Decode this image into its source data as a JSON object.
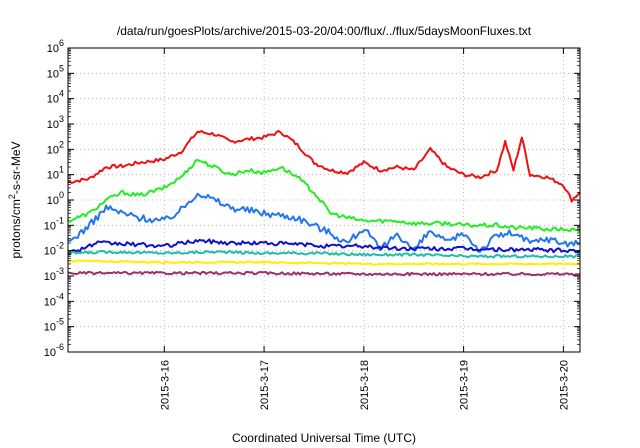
{
  "chart_data": {
    "type": "line",
    "title": "/data/run/goesPlots/archive/2015-03-20/04:00/flux/../flux/5daysMoonFluxes.txt",
    "xlabel": "Coordinated Universal Time (UTC)",
    "ylabel": {
      "base": "protons/cm",
      "sup": "2",
      "rest": "-s-sr-MeV"
    },
    "y_scale": "log",
    "ylim": [
      1e-06,
      1000000.0
    ],
    "xlim": [
      "2015-03-15 00:50",
      "2015-03-20 04:00"
    ],
    "grid": true,
    "legend": "none",
    "y_ticks": [
      {
        "value": 1e-06,
        "base": "10",
        "exp": "-6"
      },
      {
        "value": 1e-05,
        "base": "10",
        "exp": "-5"
      },
      {
        "value": 0.0001,
        "base": "10",
        "exp": "-4"
      },
      {
        "value": 0.001,
        "base": "10",
        "exp": "-3"
      },
      {
        "value": 0.01,
        "base": "10",
        "exp": "-2"
      },
      {
        "value": 0.1,
        "base": "10",
        "exp": "-1"
      },
      {
        "value": 1,
        "base": "10",
        "exp": "0"
      },
      {
        "value": 10,
        "base": "10",
        "exp": "1"
      },
      {
        "value": 100,
        "base": "10",
        "exp": "2"
      },
      {
        "value": 1000,
        "base": "10",
        "exp": "3"
      },
      {
        "value": 10000,
        "base": "10",
        "exp": "4"
      },
      {
        "value": 100000,
        "base": "10",
        "exp": "5"
      },
      {
        "value": 1000000,
        "base": "10",
        "exp": "6"
      }
    ],
    "x_ticks": [
      "2015-3-16",
      "2015-3-17",
      "2015-3-18",
      "2015-3-19",
      "2015-3-20"
    ],
    "series": [
      {
        "color": "#ee1111",
        "x": [
          "2015-03-15 00:50",
          "2015-03-15 06:00",
          "2015-03-15 10:00",
          "2015-03-15 14:00",
          "2015-03-15 18:00",
          "2015-03-16 00:00",
          "2015-03-16 04:00",
          "2015-03-16 08:00",
          "2015-03-16 12:00",
          "2015-03-16 16:00",
          "2015-03-16 20:00",
          "2015-03-17 00:00",
          "2015-03-17 04:00",
          "2015-03-17 08:00",
          "2015-03-17 12:00",
          "2015-03-17 16:00",
          "2015-03-17 20:00",
          "2015-03-18 00:00",
          "2015-03-18 04:00",
          "2015-03-18 08:00",
          "2015-03-18 12:00",
          "2015-03-18 16:00",
          "2015-03-18 20:00",
          "2015-03-19 00:00",
          "2015-03-19 04:00",
          "2015-03-19 08:00",
          "2015-03-19 10:00",
          "2015-03-19 12:00",
          "2015-03-19 14:00",
          "2015-03-19 16:00",
          "2015-03-19 20:00",
          "2015-03-20 00:00",
          "2015-03-20 02:00",
          "2015-03-20 04:00"
        ],
        "values": [
          5,
          7,
          20,
          22,
          30,
          40,
          80,
          500,
          400,
          200,
          250,
          300,
          500,
          150,
          30,
          15,
          12,
          30,
          15,
          20,
          15,
          100,
          20,
          10,
          8,
          15,
          200,
          15,
          300,
          10,
          8,
          4,
          1,
          2
        ]
      },
      {
        "color": "#22ee22",
        "x": [
          "2015-03-15 00:50",
          "2015-03-15 06:00",
          "2015-03-15 10:00",
          "2015-03-15 14:00",
          "2015-03-15 18:00",
          "2015-03-16 00:00",
          "2015-03-16 04:00",
          "2015-03-16 08:00",
          "2015-03-16 12:00",
          "2015-03-16 16:00",
          "2015-03-16 20:00",
          "2015-03-17 00:00",
          "2015-03-17 04:00",
          "2015-03-17 08:00",
          "2015-03-17 12:00",
          "2015-03-17 16:00",
          "2015-03-17 20:00",
          "2015-03-18 00:00",
          "2015-03-18 04:00",
          "2015-03-18 08:00",
          "2015-03-18 12:00",
          "2015-03-18 16:00",
          "2015-03-18 20:00",
          "2015-03-19 00:00",
          "2015-03-19 04:00",
          "2015-03-19 08:00",
          "2015-03-19 12:00",
          "2015-03-19 16:00",
          "2015-03-19 20:00",
          "2015-03-20 00:00",
          "2015-03-20 04:00"
        ],
        "values": [
          0.15,
          0.3,
          1,
          2,
          1.5,
          3,
          8,
          40,
          20,
          10,
          15,
          12,
          20,
          8,
          2,
          0.3,
          0.2,
          0.15,
          0.15,
          0.15,
          0.12,
          0.12,
          0.12,
          0.1,
          0.1,
          0.1,
          0.08,
          0.08,
          0.07,
          0.07,
          0.06
        ]
      },
      {
        "color": "#2277ee",
        "x": [
          "2015-03-15 00:50",
          "2015-03-15 06:00",
          "2015-03-15 10:00",
          "2015-03-15 14:00",
          "2015-03-15 18:00",
          "2015-03-16 00:00",
          "2015-03-16 04:00",
          "2015-03-16 08:00",
          "2015-03-16 12:00",
          "2015-03-16 16:00",
          "2015-03-16 20:00",
          "2015-03-17 00:00",
          "2015-03-17 04:00",
          "2015-03-17 08:00",
          "2015-03-17 12:00",
          "2015-03-17 16:00",
          "2015-03-17 20:00",
          "2015-03-18 00:00",
          "2015-03-18 04:00",
          "2015-03-18 08:00",
          "2015-03-18 12:00",
          "2015-03-18 16:00",
          "2015-03-18 20:00",
          "2015-03-19 00:00",
          "2015-03-19 04:00",
          "2015-03-19 08:00",
          "2015-03-19 12:00",
          "2015-03-19 16:00",
          "2015-03-19 20:00",
          "2015-03-20 00:00",
          "2015-03-20 04:00"
        ],
        "values": [
          0.02,
          0.1,
          0.5,
          0.3,
          0.2,
          0.15,
          0.4,
          2,
          1,
          0.5,
          0.4,
          0.3,
          0.25,
          0.2,
          0.1,
          0.05,
          0.02,
          0.08,
          0.01,
          0.05,
          0.01,
          0.06,
          0.02,
          0.05,
          0.01,
          0.04,
          0.05,
          0.02,
          0.03,
          0.02,
          0.02
        ]
      },
      {
        "color": "#1111cc",
        "x": [
          "2015-03-15 00:50",
          "2015-03-15 08:00",
          "2015-03-15 16:00",
          "2015-03-16 00:00",
          "2015-03-16 08:00",
          "2015-03-16 16:00",
          "2015-03-17 00:00",
          "2015-03-17 08:00",
          "2015-03-17 16:00",
          "2015-03-18 00:00",
          "2015-03-18 08:00",
          "2015-03-18 16:00",
          "2015-03-19 00:00",
          "2015-03-19 08:00",
          "2015-03-19 16:00",
          "2015-03-20 00:00",
          "2015-03-20 04:00"
        ],
        "values": [
          0.008,
          0.02,
          0.018,
          0.015,
          0.025,
          0.02,
          0.02,
          0.018,
          0.015,
          0.015,
          0.012,
          0.012,
          0.012,
          0.011,
          0.011,
          0.01,
          0.01
        ]
      },
      {
        "color": "#22bbaa",
        "x": [
          "2015-03-15 00:50",
          "2015-03-15 12:00",
          "2015-03-16 00:00",
          "2015-03-16 12:00",
          "2015-03-17 00:00",
          "2015-03-17 12:00",
          "2015-03-18 00:00",
          "2015-03-18 12:00",
          "2015-03-19 00:00",
          "2015-03-19 12:00",
          "2015-03-20 00:00",
          "2015-03-20 04:00"
        ],
        "values": [
          0.008,
          0.009,
          0.008,
          0.009,
          0.008,
          0.008,
          0.007,
          0.007,
          0.006,
          0.006,
          0.006,
          0.006
        ]
      },
      {
        "color": "#ffee00",
        "x": [
          "2015-03-15 00:50",
          "2015-03-16 00:00",
          "2015-03-17 00:00",
          "2015-03-18 00:00",
          "2015-03-19 00:00",
          "2015-03-20 00:00",
          "2015-03-20 04:00"
        ],
        "values": [
          0.004,
          0.0035,
          0.0035,
          0.003,
          0.003,
          0.003,
          0.003
        ]
      },
      {
        "color": "#993366",
        "x": [
          "2015-03-15 00:50",
          "2015-03-16 00:00",
          "2015-03-17 00:00",
          "2015-03-18 00:00",
          "2015-03-19 00:00",
          "2015-03-20 00:00",
          "2015-03-20 04:00"
        ],
        "values": [
          0.0013,
          0.0013,
          0.0013,
          0.0012,
          0.0012,
          0.0012,
          0.0012
        ]
      }
    ]
  }
}
